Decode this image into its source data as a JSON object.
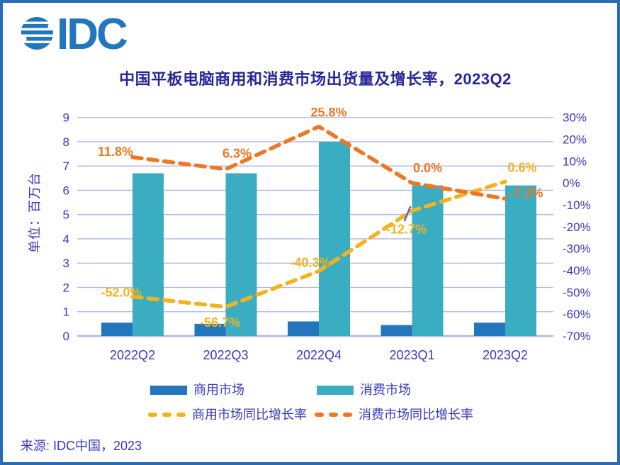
{
  "logo": {
    "text": "IDC"
  },
  "source": "来源: IDC中国，2023",
  "colors": {
    "frame": "#2a6cb4",
    "logo_blue": "#2176bd",
    "grid": "#b3b3e6",
    "axis_text": "#3838c2",
    "title_text": "#26269b",
    "commercial_bar": "#2476bc",
    "consumer_bar": "#3aadc2",
    "commercial_line": "#f2b31c",
    "consumer_line": "#ef7722"
  },
  "chart_data": {
    "type": "bar+line combo (dual axis)",
    "title": "中国平板电脑商用和消费市场出货量及增长率，2023Q2",
    "categories": [
      "2022Q2",
      "2022Q3",
      "2022Q4",
      "2023Q1",
      "2023Q2"
    ],
    "bar_series": [
      {
        "name": "商用市场",
        "axis": "left",
        "color": "#2476bc",
        "values": [
          0.55,
          0.5,
          0.6,
          0.45,
          0.55
        ]
      },
      {
        "name": "消费市场",
        "axis": "left",
        "color": "#3aadc2",
        "values": [
          6.7,
          6.7,
          8.0,
          6.2,
          6.2
        ]
      }
    ],
    "line_series": [
      {
        "name": "商用市场同比增长率",
        "axis": "right",
        "color": "#f2b31c",
        "style": "dashed",
        "values": [
          -52.0,
          -56.7,
          -40.3,
          -12.7,
          0.6
        ],
        "labels": [
          "-52.0%",
          "-56.7%",
          "-40.3%",
          "-12.7%",
          "0.6%"
        ]
      },
      {
        "name": "消费市场同比增长率",
        "axis": "right",
        "color": "#ef7722",
        "style": "dashed",
        "values": [
          11.8,
          6.3,
          25.8,
          0.0,
          -7.2
        ],
        "labels": [
          "11.8%",
          "6.3%",
          "25.8%",
          "0.0%",
          "-7.2%"
        ]
      }
    ],
    "left_axis": {
      "label": "单位：百万台",
      "min": 0,
      "max": 9,
      "ticks": [
        0,
        1,
        2,
        3,
        4,
        5,
        6,
        7,
        8,
        9
      ]
    },
    "right_axis": {
      "min": -70,
      "max": 30,
      "tick_values": [
        30,
        20,
        10,
        0,
        -10,
        -20,
        -30,
        -40,
        -50,
        -60,
        -70
      ],
      "tick_labels": [
        "30%",
        "20%",
        "10%",
        "0%",
        "-10%",
        "-20%",
        "-30%",
        "-40%",
        "-50%",
        "-60%",
        "-70%"
      ]
    },
    "grid": true,
    "legend_position": "bottom"
  }
}
